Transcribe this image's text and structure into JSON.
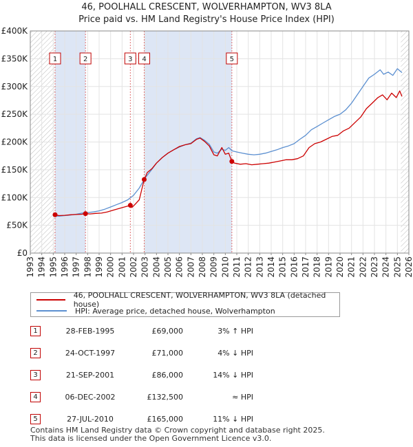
{
  "header": {
    "title_line1": "46, POOLHALL CRESCENT, WOLVERHAMPTON, WV3 8LA",
    "title_line2": "Price paid vs. HM Land Registry's House Price Index (HPI)"
  },
  "colors": {
    "price_line": "#cc0000",
    "hpi_line": "#5b8fd0",
    "shade": "#dde6f5",
    "grid": "#e3e3e3",
    "marker_dash": "#e07070",
    "hatch": "#bbbbbb"
  },
  "chart_data": {
    "type": "line",
    "title": "46, POOLHALL CRESCENT, WOLVERHAMPTON, WV3 8LA",
    "subtitle": "Price paid vs. HM Land Registry's House Price Index (HPI)",
    "xlabel": "",
    "ylabel": "",
    "xlim": [
      1993,
      2026
    ],
    "ylim": [
      0,
      400000
    ],
    "x_ticks": [
      "1993",
      "1994",
      "1995",
      "1996",
      "1997",
      "1998",
      "1999",
      "2000",
      "2001",
      "2002",
      "2003",
      "2004",
      "2005",
      "2006",
      "2007",
      "2008",
      "2009",
      "2010",
      "2011",
      "2012",
      "2013",
      "2014",
      "2015",
      "2016",
      "2017",
      "2018",
      "2019",
      "2020",
      "2021",
      "2022",
      "2023",
      "2024",
      "2025",
      "2026"
    ],
    "y_ticks": [
      {
        "value": 0,
        "label": "£0"
      },
      {
        "value": 50000,
        "label": "£50K"
      },
      {
        "value": 100000,
        "label": "£100K"
      },
      {
        "value": 150000,
        "label": "£150K"
      },
      {
        "value": 200000,
        "label": "£200K"
      },
      {
        "value": 250000,
        "label": "£250K"
      },
      {
        "value": 300000,
        "label": "£300K"
      },
      {
        "value": 350000,
        "label": "£350K"
      },
      {
        "value": 400000,
        "label": "£400K"
      }
    ],
    "grid": true,
    "hatched_ranges": [
      [
        1993,
        1995.16
      ],
      [
        2025.3,
        2026
      ]
    ],
    "shaded_ranges": [
      [
        1995.16,
        1997.81
      ],
      [
        2002.93,
        2010.57
      ]
    ],
    "series": [
      {
        "name": "46, POOLHALL CRESCENT, WOLVERHAMPTON, WV3 8LA (detached house)",
        "color": "#cc0000",
        "points": [
          [
            1995.16,
            69000
          ],
          [
            1995.5,
            67500
          ],
          [
            1996.0,
            68000
          ],
          [
            1996.5,
            69000
          ],
          [
            1997.0,
            69500
          ],
          [
            1997.5,
            70000
          ],
          [
            1997.81,
            71000
          ],
          [
            1998.2,
            70500
          ],
          [
            1998.7,
            71500
          ],
          [
            1999.2,
            72000
          ],
          [
            1999.7,
            74000
          ],
          [
            2000.2,
            77000
          ],
          [
            2000.7,
            80000
          ],
          [
            2001.2,
            83000
          ],
          [
            2001.72,
            86000
          ],
          [
            2001.85,
            82000
          ],
          [
            2002.1,
            87000
          ],
          [
            2002.5,
            96000
          ],
          [
            2002.93,
            132500
          ],
          [
            2003.2,
            145000
          ],
          [
            2003.6,
            152000
          ],
          [
            2004.0,
            162000
          ],
          [
            2004.5,
            172000
          ],
          [
            2005.0,
            180000
          ],
          [
            2005.5,
            186000
          ],
          [
            2006.0,
            192000
          ],
          [
            2006.5,
            195000
          ],
          [
            2007.0,
            197000
          ],
          [
            2007.5,
            205000
          ],
          [
            2007.8,
            207000
          ],
          [
            2008.2,
            201000
          ],
          [
            2008.6,
            193000
          ],
          [
            2009.0,
            177000
          ],
          [
            2009.3,
            175000
          ],
          [
            2009.7,
            190000
          ],
          [
            2010.0,
            178000
          ],
          [
            2010.3,
            180000
          ],
          [
            2010.57,
            165000
          ],
          [
            2010.8,
            162000
          ],
          [
            2011.3,
            160000
          ],
          [
            2011.8,
            161000
          ],
          [
            2012.3,
            159000
          ],
          [
            2012.8,
            160000
          ],
          [
            2013.3,
            161000
          ],
          [
            2013.8,
            162000
          ],
          [
            2014.3,
            164000
          ],
          [
            2014.8,
            166000
          ],
          [
            2015.3,
            168000
          ],
          [
            2015.8,
            168000
          ],
          [
            2016.3,
            170000
          ],
          [
            2016.8,
            175000
          ],
          [
            2017.3,
            190000
          ],
          [
            2017.8,
            197000
          ],
          [
            2018.3,
            200000
          ],
          [
            2018.8,
            205000
          ],
          [
            2019.3,
            210000
          ],
          [
            2019.8,
            212000
          ],
          [
            2020.3,
            220000
          ],
          [
            2020.8,
            225000
          ],
          [
            2021.3,
            235000
          ],
          [
            2021.8,
            245000
          ],
          [
            2022.3,
            260000
          ],
          [
            2022.8,
            270000
          ],
          [
            2023.3,
            280000
          ],
          [
            2023.7,
            285000
          ],
          [
            2024.1,
            276000
          ],
          [
            2024.5,
            288000
          ],
          [
            2024.9,
            280000
          ],
          [
            2025.2,
            292000
          ],
          [
            2025.4,
            282000
          ]
        ]
      },
      {
        "name": "HPI: Average price, detached house, Wolverhampton",
        "color": "#5b8fd0",
        "points": [
          [
            1995.0,
            67000
          ],
          [
            1995.5,
            66500
          ],
          [
            1996.0,
            67500
          ],
          [
            1996.5,
            68500
          ],
          [
            1997.0,
            70000
          ],
          [
            1997.5,
            72000
          ],
          [
            1998.0,
            73000
          ],
          [
            1998.5,
            74000
          ],
          [
            1999.0,
            76000
          ],
          [
            1999.5,
            79000
          ],
          [
            2000.0,
            83000
          ],
          [
            2000.5,
            87000
          ],
          [
            2001.0,
            91000
          ],
          [
            2001.5,
            96000
          ],
          [
            2002.0,
            104000
          ],
          [
            2002.5,
            117000
          ],
          [
            2003.0,
            135000
          ],
          [
            2003.5,
            148000
          ],
          [
            2004.0,
            162000
          ],
          [
            2004.5,
            172000
          ],
          [
            2005.0,
            180000
          ],
          [
            2005.5,
            186000
          ],
          [
            2006.0,
            191000
          ],
          [
            2006.5,
            195000
          ],
          [
            2007.0,
            198000
          ],
          [
            2007.5,
            206000
          ],
          [
            2007.8,
            208000
          ],
          [
            2008.2,
            203000
          ],
          [
            2008.6,
            196000
          ],
          [
            2009.0,
            182000
          ],
          [
            2009.3,
            180000
          ],
          [
            2009.7,
            187000
          ],
          [
            2010.0,
            185000
          ],
          [
            2010.3,
            190000
          ],
          [
            2010.6,
            184000
          ],
          [
            2011.0,
            182000
          ],
          [
            2011.5,
            180000
          ],
          [
            2012.0,
            178000
          ],
          [
            2012.5,
            177000
          ],
          [
            2013.0,
            178000
          ],
          [
            2013.5,
            180000
          ],
          [
            2014.0,
            183000
          ],
          [
            2014.5,
            186000
          ],
          [
            2015.0,
            190000
          ],
          [
            2015.5,
            193000
          ],
          [
            2016.0,
            197000
          ],
          [
            2016.5,
            205000
          ],
          [
            2017.0,
            212000
          ],
          [
            2017.5,
            222000
          ],
          [
            2018.0,
            228000
          ],
          [
            2018.5,
            234000
          ],
          [
            2019.0,
            240000
          ],
          [
            2019.5,
            246000
          ],
          [
            2020.0,
            250000
          ],
          [
            2020.5,
            258000
          ],
          [
            2021.0,
            270000
          ],
          [
            2021.5,
            285000
          ],
          [
            2022.0,
            300000
          ],
          [
            2022.5,
            315000
          ],
          [
            2023.0,
            322000
          ],
          [
            2023.5,
            330000
          ],
          [
            2023.8,
            322000
          ],
          [
            2024.2,
            326000
          ],
          [
            2024.6,
            320000
          ],
          [
            2025.0,
            332000
          ],
          [
            2025.4,
            325000
          ]
        ]
      }
    ],
    "annotations": [
      {
        "label": "1",
        "x": 1995.16,
        "value": 69000
      },
      {
        "label": "2",
        "x": 1997.81,
        "value": 71000
      },
      {
        "label": "3",
        "x": 2001.72,
        "value": 86000
      },
      {
        "label": "4",
        "x": 2002.93,
        "value": 132500
      },
      {
        "label": "5",
        "x": 2010.57,
        "value": 165000
      }
    ]
  },
  "legend": {
    "price_label": "46, POOLHALL CRESCENT, WOLVERHAMPTON, WV3 8LA (detached house)",
    "hpi_label": "HPI: Average price, detached house, Wolverhampton"
  },
  "transactions": [
    {
      "num": "1",
      "date": "28-FEB-1995",
      "price": "£69,000",
      "hpi": "3% ↑ HPI"
    },
    {
      "num": "2",
      "date": "24-OCT-1997",
      "price": "£71,000",
      "hpi": "4% ↓ HPI"
    },
    {
      "num": "3",
      "date": "21-SEP-2001",
      "price": "£86,000",
      "hpi": "14% ↓ HPI"
    },
    {
      "num": "4",
      "date": "06-DEC-2002",
      "price": "£132,500",
      "hpi": "≈ HPI"
    },
    {
      "num": "5",
      "date": "27-JUL-2010",
      "price": "£165,000",
      "hpi": "11% ↓ HPI"
    }
  ],
  "footer": {
    "line1": "Contains HM Land Registry data © Crown copyright and database right 2025.",
    "line2": "This data is licensed under the Open Government Licence v3.0."
  }
}
